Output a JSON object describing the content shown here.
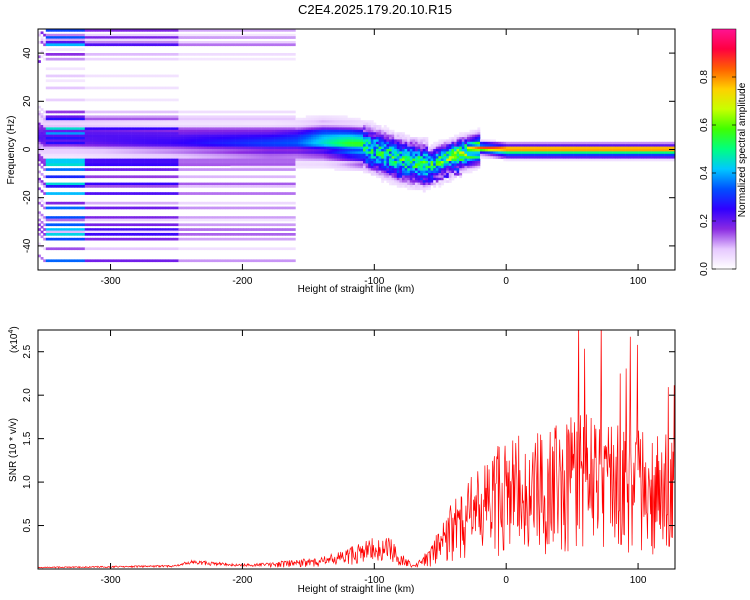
{
  "title": "C2E4.2025.179.20.10.R15",
  "chart_data": [
    {
      "type": "heatmap",
      "xlabel": "Height of straight line (km)",
      "ylabel": "Frequency (Hz)",
      "xlim": [
        -355,
        128
      ],
      "ylim": [
        -50,
        50
      ],
      "xticks": [
        -300,
        -200,
        -100,
        0,
        100
      ],
      "xtick_labels": [
        "-300",
        "-200",
        "-100",
        "0",
        "100"
      ],
      "yticks": [
        -40,
        -20,
        0,
        20,
        40
      ],
      "ytick_labels": [
        "-40",
        "-20",
        "0",
        "20",
        "40"
      ],
      "ridge": [
        {
          "x": -330,
          "freq": 6
        },
        {
          "x": -250,
          "freq": 4
        },
        {
          "x": -180,
          "freq": 3
        },
        {
          "x": -140,
          "freq": 4
        },
        {
          "x": -110,
          "freq": 2
        },
        {
          "x": -80,
          "freq": -4
        },
        {
          "x": -60,
          "freq": -6
        },
        {
          "x": -40,
          "freq": -2
        },
        {
          "x": -20,
          "freq": 1
        },
        {
          "x": 0,
          "freq": 0
        },
        {
          "x": 60,
          "freq": 0
        },
        {
          "x": 125,
          "freq": 0
        }
      ],
      "peak_amplitude": [
        {
          "x": -330,
          "amp": 0.2
        },
        {
          "x": -250,
          "amp": 0.22
        },
        {
          "x": -160,
          "amp": 0.3
        },
        {
          "x": -120,
          "amp": 0.5
        },
        {
          "x": -90,
          "amp": 0.55
        },
        {
          "x": -60,
          "amp": 0.55
        },
        {
          "x": -30,
          "amp": 0.7
        },
        {
          "x": 0,
          "amp": 0.95
        },
        {
          "x": 125,
          "amp": 0.95
        }
      ],
      "colorbar": {
        "label": "Normalized spectral amplitude",
        "range": [
          0,
          1
        ],
        "ticks": [
          0.0,
          0.2,
          0.4,
          0.6,
          0.8
        ],
        "tick_labels": [
          "0.0",
          "0.2",
          "0.4",
          "0.6",
          "0.8"
        ],
        "colors": [
          "#ffffff",
          "#e6c8ff",
          "#8a2be2",
          "#3000ff",
          "#0050ff",
          "#00c8ff",
          "#00ff80",
          "#40ff00",
          "#c8ff00",
          "#ffd000",
          "#ff6000",
          "#ff0040",
          "#ff1493"
        ]
      }
    },
    {
      "type": "line",
      "xlabel": "Height of straight line (km)",
      "ylabel": "SNR (10 * v/v)",
      "y_multiplier": "(x10^4)",
      "y_multiplier_base": "(x10",
      "y_multiplier_exp": "4",
      "y_multiplier_close": ")",
      "xlim": [
        -355,
        128
      ],
      "ylim": [
        0,
        27500
      ],
      "xticks": [
        -300,
        -200,
        -100,
        0,
        100
      ],
      "xtick_labels": [
        "-300",
        "-200",
        "-100",
        "0",
        "100"
      ],
      "yticks": [
        5000,
        10000,
        15000,
        20000,
        25000
      ],
      "ytick_labels": [
        "0.5",
        "1.0",
        "1.5",
        "2.0",
        "2.5"
      ],
      "color": "#ff0000",
      "series": [
        {
          "x": [
            -355,
            -300,
            -250,
            -240,
            -200,
            -160,
            -140,
            -120,
            -100,
            -90,
            -80,
            -70,
            -60,
            -50,
            -40,
            -30,
            -20,
            -10,
            0,
            10,
            20,
            30,
            40,
            50,
            60,
            70,
            80,
            90,
            100,
            110,
            120,
            128
          ],
          "values": [
            200,
            300,
            400,
            900,
            500,
            800,
            1000,
            1800,
            2800,
            3000,
            1500,
            300,
            1800,
            5000,
            8000,
            10000,
            12000,
            14000,
            15000,
            16000,
            15500,
            17000,
            18000,
            18000,
            18500,
            17500,
            17000,
            17000,
            16500,
            16000,
            16000,
            15500
          ]
        }
      ]
    }
  ]
}
